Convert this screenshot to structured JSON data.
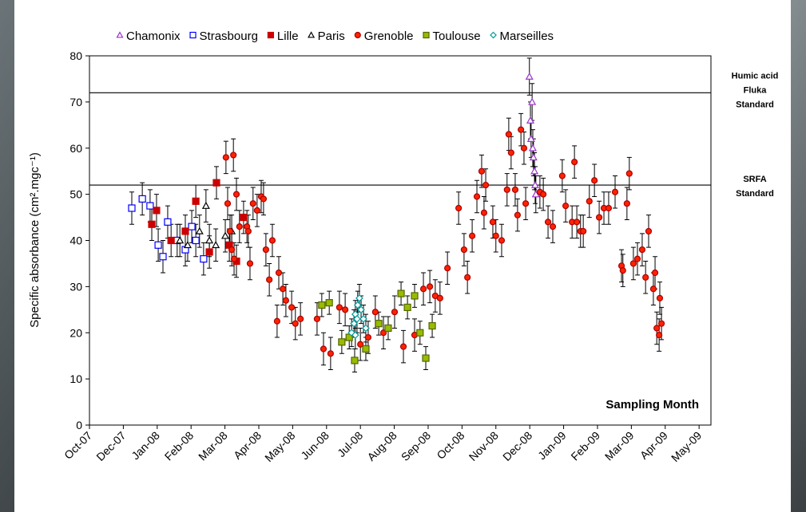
{
  "chart_data": {
    "type": "scatter",
    "y_label": "Specific absorbance (cm².mgc⁻¹)",
    "annotation": "Sampling Month",
    "ylim": [
      0,
      80
    ],
    "yticks": [
      0,
      10,
      20,
      30,
      40,
      50,
      60,
      70,
      80
    ],
    "xlim": [
      0,
      18.35
    ],
    "xticks": [
      {
        "value": 0,
        "label": "Oct-07"
      },
      {
        "value": 1,
        "label": "Dec-07"
      },
      {
        "value": 2,
        "label": "Jan-08"
      },
      {
        "value": 3,
        "label": "Feb-08"
      },
      {
        "value": 4,
        "label": "Mar-08"
      },
      {
        "value": 5,
        "label": "Apr-08"
      },
      {
        "value": 6,
        "label": "May-08"
      },
      {
        "value": 7,
        "label": "Jun-08"
      },
      {
        "value": 8,
        "label": "Jul-08"
      },
      {
        "value": 9,
        "label": "Aug-08"
      },
      {
        "value": 10,
        "label": "Sep-08"
      },
      {
        "value": 11,
        "label": "Oct-08"
      },
      {
        "value": 12,
        "label": "Nov-08"
      },
      {
        "value": 13,
        "label": "Dec-08"
      },
      {
        "value": 14,
        "label": "Jan-09"
      },
      {
        "value": 15,
        "label": "Feb-09"
      },
      {
        "value": 16,
        "label": "Mar-09"
      },
      {
        "value": 17,
        "label": "Apr-09"
      },
      {
        "value": 18,
        "label": "May-09"
      }
    ],
    "reference_lines": [
      {
        "value": 72,
        "label": [
          "Humic acid",
          "Fluka",
          "Standard"
        ]
      },
      {
        "value": 52,
        "label": [
          "SRFA",
          "Standard"
        ]
      }
    ],
    "series": [
      {
        "name": "Chamonix",
        "color": "#9933cc",
        "marker": "triangle",
        "filled": false,
        "error": 4,
        "x": [
          12.99,
          13.02,
          13.04,
          13.07,
          13.09,
          13.11,
          13.14,
          13.16,
          13.18
        ],
        "values": [
          75.5,
          66,
          62,
          70,
          60,
          58,
          55,
          52,
          50
        ]
      },
      {
        "name": "Strasbourg",
        "color": "#0000ff",
        "marker": "square",
        "filled": false,
        "error": 3.5,
        "x": [
          1.25,
          1.56,
          1.79,
          2.03,
          2.17,
          2.31,
          2.59,
          2.83,
          3.02,
          3.14,
          3.37
        ],
        "values": [
          47,
          49,
          47.5,
          39,
          36.5,
          44,
          40,
          38,
          43,
          40,
          36
        ]
      },
      {
        "name": "Lille",
        "color": "#cc0000",
        "marker": "square",
        "filled": true,
        "error": 3.5,
        "x": [
          1.84,
          1.98,
          2.41,
          2.83,
          3.14,
          3.54,
          3.75,
          4.13,
          4.34,
          4.55
        ],
        "values": [
          43.5,
          46.5,
          40,
          42,
          48.5,
          37.5,
          52.5,
          39,
          35.5,
          45
        ]
      },
      {
        "name": "Paris",
        "color": "#000000",
        "marker": "triangle",
        "filled": false,
        "error": 3.5,
        "x": [
          2.67,
          2.9,
          3.25,
          3.44,
          3.54,
          3.73,
          4.01,
          4.2
        ],
        "values": [
          40,
          39,
          42,
          47.5,
          40,
          39,
          41,
          42
        ]
      },
      {
        "name": "Grenoble",
        "color": "#ff2200",
        "marker": "circle",
        "filled": true,
        "error": 3.5,
        "x": [
          4.03,
          4.25,
          4.08,
          4.34,
          4.15,
          4.2,
          4.27,
          4.43,
          4.65,
          4.69,
          4.74,
          4.83,
          4.95,
          5.07,
          5.14,
          5.21,
          5.31,
          5.4,
          5.54,
          5.59,
          5.71,
          5.8,
          5.97,
          6.08,
          6.23,
          6.72,
          6.91,
          7.12,
          7.38,
          7.55,
          8.0,
          8.23,
          8.44,
          8.68,
          9.01,
          9.27,
          9.6,
          9.86,
          10.05,
          10.21,
          10.35,
          10.57,
          10.9,
          11.06,
          11.16,
          11.3,
          11.44,
          11.58,
          11.65,
          11.7,
          11.91,
          12.0,
          12.17,
          12.33,
          12.38,
          12.45,
          12.57,
          12.64,
          12.74,
          12.83,
          12.88,
          13.3,
          13.4,
          13.54,
          13.68,
          13.96,
          14.06,
          14.25,
          14.32,
          14.39,
          14.5,
          14.58,
          14.76,
          14.91,
          15.05,
          15.19,
          15.33,
          15.52,
          15.71,
          15.75,
          15.87,
          15.94,
          16.06,
          16.18,
          16.32,
          16.42,
          16.51,
          16.65,
          16.7,
          16.75,
          16.84,
          16.89,
          16.82
        ],
        "values": [
          58,
          58.5,
          48,
          50,
          42,
          38,
          36,
          43,
          43,
          42,
          35,
          48,
          46.5,
          49.5,
          49,
          38,
          31.5,
          40,
          22.5,
          33,
          29.5,
          27,
          25.5,
          22,
          23,
          23,
          16.5,
          15.5,
          25.5,
          25,
          17.5,
          19,
          24.5,
          20,
          24.5,
          17,
          19.5,
          29.5,
          30,
          28,
          27.5,
          34,
          47,
          38,
          32,
          41,
          49.5,
          55,
          46,
          52,
          44,
          41,
          40,
          51,
          63,
          59,
          51,
          45.5,
          64,
          60,
          48,
          50.5,
          50,
          44,
          43,
          54,
          47.5,
          44,
          57,
          44,
          42,
          42,
          48.5,
          53,
          45,
          47,
          47,
          50.5,
          34.5,
          33.5,
          48,
          54.5,
          35,
          36,
          38,
          32,
          42,
          29.5,
          33,
          21,
          27.5,
          22,
          19.5
        ]
      },
      {
        "name": "Toulouse",
        "color": "#99bb00",
        "marker": "square",
        "filled": true,
        "error": 2.5,
        "x": [
          6.86,
          7.08,
          7.45,
          7.67,
          7.83,
          8.16,
          8.54,
          8.82,
          9.2,
          9.39,
          9.6,
          9.76,
          9.93,
          10.12
        ],
        "values": [
          26,
          26.5,
          18,
          19,
          14,
          16.5,
          22,
          21,
          28.5,
          25.5,
          28,
          20,
          14.5,
          21.5
        ]
      },
      {
        "name": "Marseilles",
        "color": "#009999",
        "marker": "diamond",
        "filled": false,
        "error": 3,
        "x": [
          7.74,
          7.81,
          7.85,
          7.92,
          7.97,
          8.02,
          8.09,
          7.85,
          8.16,
          7.9
        ],
        "values": [
          20,
          22,
          24,
          26,
          27.5,
          25,
          23,
          19.5,
          21,
          23
        ]
      }
    ]
  }
}
